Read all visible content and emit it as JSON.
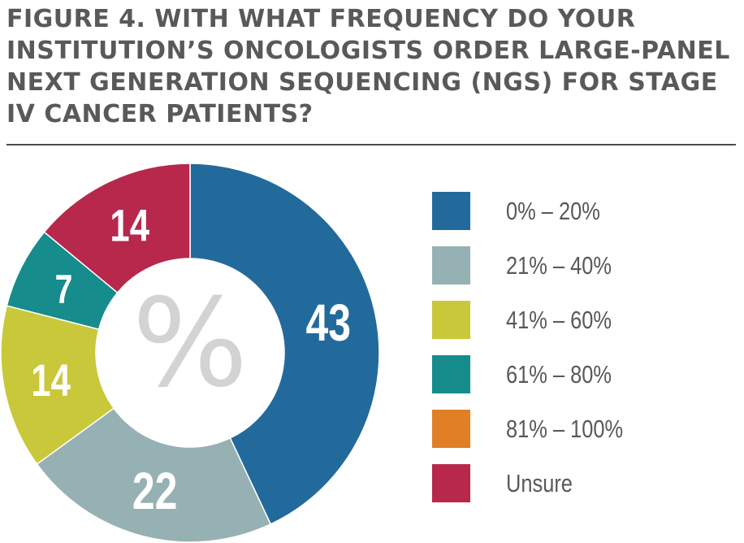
{
  "title": "FIGURE 4. WITH WHAT FREQUENCY DO YOUR INSTITUTION’S ONCOLOGISTS ORDER LARGE-PANEL NEXT GENERATION SEQUENCING (NGS) FOR STAGE IV CANCER PATIENTS?",
  "center_symbol": "%",
  "chart_data": {
    "type": "pie",
    "variant": "donut",
    "unit": "%",
    "categories": [
      "0% – 20%",
      "21% – 40%",
      "41% – 60%",
      "61% – 80%",
      "81% – 100%",
      "Unsure"
    ],
    "values": [
      43,
      22,
      14,
      7,
      0,
      14
    ],
    "data_labels": [
      "43",
      "22",
      "14",
      "7",
      "",
      "14"
    ],
    "colors": [
      "#236a9c",
      "#96b1b3",
      "#c8c83a",
      "#168c8c",
      "#e07f25",
      "#b7284c"
    ],
    "legend_position": "right",
    "start_angle_deg": 0,
    "direction": "clockwise"
  }
}
